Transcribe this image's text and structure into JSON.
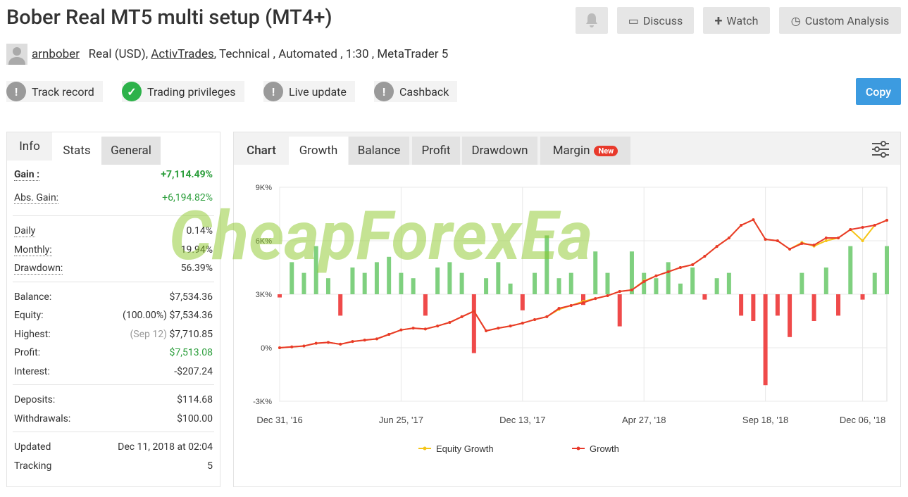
{
  "header": {
    "title": "Bober Real MT5 multi setup (MT4+)",
    "buttons": [
      "Discuss",
      "Watch",
      "Custom Analysis"
    ],
    "user": "arnbober",
    "details_1": "Real (USD),",
    "broker": "ActivTrades",
    "details_2": ", Technical , Automated , 1:30 , MetaTrader 5",
    "badges": [
      "Track record",
      "Trading privileges",
      "Live update",
      "Cashback"
    ],
    "copy": "Copy"
  },
  "left_tabs": [
    "Info",
    "Stats",
    "General"
  ],
  "stats": [
    [
      {
        "label": "Gain :",
        "value": "+7,114.49%"
      },
      {
        "label": "Abs. Gain:",
        "value": "+6,194.82%"
      }
    ],
    [
      {
        "label": "Daily",
        "value": "0.14%"
      },
      {
        "label": "Monthly:",
        "value": "19.94%"
      },
      {
        "label": "Drawdown:",
        "value": "56.39%"
      }
    ],
    [
      {
        "label": "Balance:",
        "value": "$7,534.36"
      },
      {
        "label": "Equity:",
        "note": "(100.00%)",
        "value": "$7,534.36"
      },
      {
        "label": "Highest:",
        "note": "(Sep 12)",
        "value": "$7,710.85"
      },
      {
        "label": "Profit:",
        "value": "$7,513.08"
      },
      {
        "label": "Interest:",
        "value": "-$207.24"
      }
    ],
    [
      {
        "label": "Deposits:",
        "value": "$114.68"
      },
      {
        "label": "Withdrawals:",
        "value": "$100.00"
      }
    ],
    [
      {
        "label": "Updated",
        "value": "Dec 11, 2018 at 02:04"
      },
      {
        "label": "Tracking",
        "value": "5"
      }
    ]
  ],
  "chart_tabs": [
    "Chart",
    "Growth",
    "Balance",
    "Profit",
    "Drawdown",
    "Margin"
  ],
  "new_badge": "New",
  "watermark": "CheapForexEa",
  "chart_data": {
    "type": "line",
    "categories": [
      "Dec 31, '16",
      null,
      null,
      null,
      null,
      null,
      null,
      null,
      null,
      null,
      "Jun 25, '17",
      null,
      null,
      null,
      null,
      null,
      null,
      null,
      null,
      null,
      "Dec 13, '17",
      null,
      null,
      null,
      null,
      null,
      null,
      null,
      null,
      null,
      "Apr 27, '18",
      null,
      null,
      null,
      null,
      null,
      null,
      null,
      null,
      null,
      "Sep 18, '18",
      null,
      null,
      null,
      null,
      null,
      null,
      null,
      "Dec 06, '18",
      null,
      null
    ],
    "series": [
      {
        "name": "Equity Growth",
        "color": "#f5c518",
        "values": [
          0,
          50,
          100,
          250,
          300,
          200,
          350,
          430,
          500,
          750,
          1000,
          1100,
          1050,
          1220,
          1420,
          1740,
          2050,
          950,
          1100,
          1220,
          1380,
          1580,
          1740,
          2150,
          2370,
          2600,
          2760,
          2920,
          3160,
          3240,
          3750,
          4030,
          4260,
          4500,
          4660,
          5130,
          5680,
          6160,
          6870,
          7180,
          6080,
          6000,
          5530,
          5900,
          5700,
          6000,
          6160,
          6630,
          6000,
          6870,
          7150
        ]
      },
      {
        "name": "Growth",
        "color": "#e8392b",
        "values": [
          0,
          50,
          100,
          250,
          300,
          200,
          350,
          430,
          500,
          750,
          1000,
          1100,
          1050,
          1220,
          1420,
          1740,
          2050,
          950,
          1100,
          1220,
          1380,
          1580,
          1740,
          2210,
          2370,
          2530,
          2760,
          2920,
          3160,
          3240,
          3710,
          4030,
          4260,
          4500,
          4660,
          5130,
          5680,
          6160,
          6870,
          7180,
          6080,
          6000,
          5530,
          5840,
          5760,
          6160,
          6160,
          6630,
          6750,
          6870,
          7150
        ]
      }
    ],
    "bars": {
      "axis": "y2",
      "up_color": "#7fd07f",
      "down_color": "#ef4a4a",
      "values": [
        -3,
        30,
        20,
        45,
        15,
        -20,
        25,
        20,
        30,
        35,
        20,
        15,
        -20,
        25,
        30,
        20,
        -55,
        15,
        30,
        10,
        -15,
        20,
        55,
        15,
        20,
        -10,
        40,
        20,
        -30,
        40,
        20,
        15,
        30,
        10,
        25,
        -5,
        15,
        20,
        -20,
        -25,
        -85,
        -20,
        -40,
        20,
        -25,
        25,
        -20,
        45,
        -5,
        20,
        45
      ],
      "y2lim": [
        -100,
        100
      ]
    },
    "ylim": [
      -3000,
      9000
    ],
    "yticks": [
      {
        "value": 9000,
        "label": "9K%"
      },
      {
        "value": 6000,
        "label": "6K%"
      },
      {
        "value": 3000,
        "label": "3K%"
      },
      {
        "value": 0,
        "label": "0%"
      },
      {
        "value": -3000,
        "label": "-3K%"
      }
    ],
    "grid": true,
    "legend": "bottom"
  }
}
